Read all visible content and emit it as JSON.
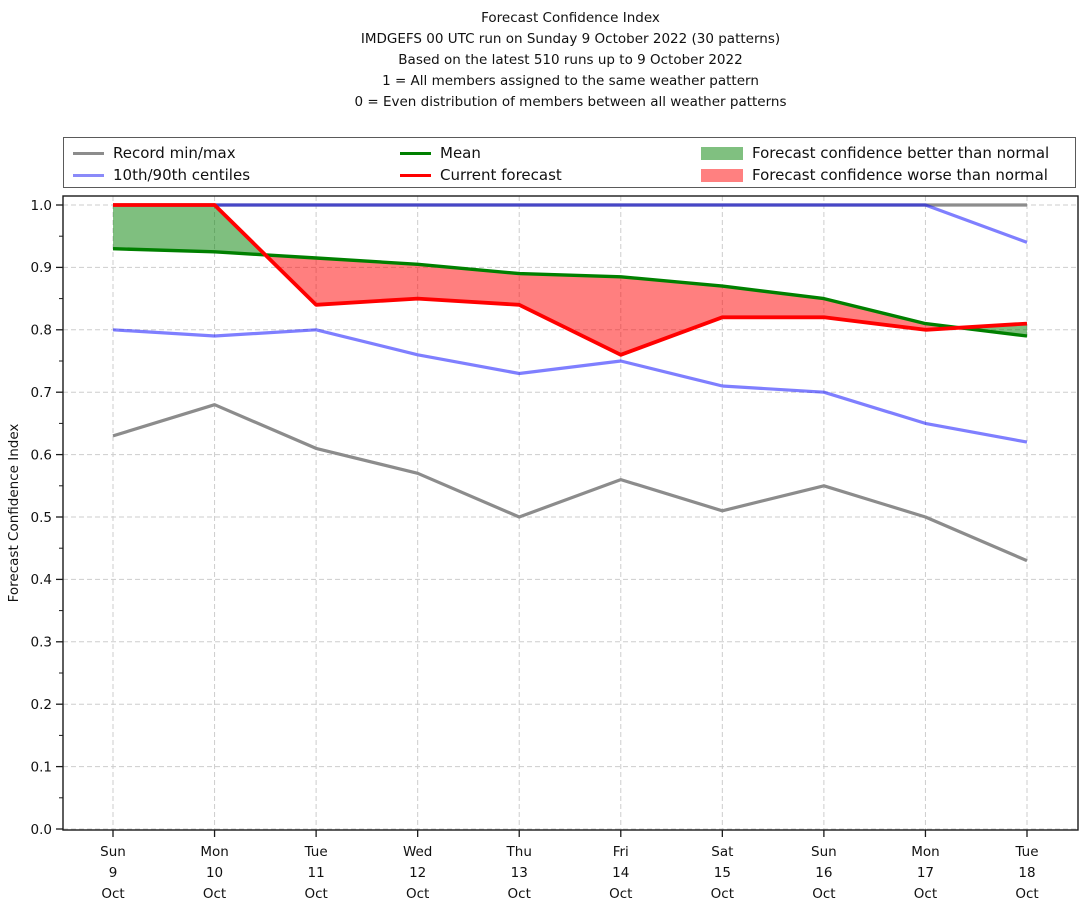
{
  "title": {
    "lines": [
      "Forecast Confidence Index",
      "IMDGEFS 00 UTC run on Sunday 9 October 2022 (30 patterns)",
      "Based on the latest 510 runs up to 9 October 2022",
      "1 = All members assigned to the same weather pattern",
      "0 = Even distribution of members between all weather patterns"
    ]
  },
  "legend": {
    "items": [
      {
        "type": "line",
        "color": "#8c8c8c",
        "label": "Record min/max"
      },
      {
        "type": "line",
        "color": "#8a8af9",
        "label": "10th/90th centiles"
      },
      {
        "type": "line",
        "color": "#008000",
        "label": "Mean"
      },
      {
        "type": "line",
        "color": "#ff0000",
        "label": "Current forecast"
      },
      {
        "type": "patch",
        "color": "#80c080",
        "label": "Forecast confidence better than normal"
      },
      {
        "type": "patch",
        "color": "#ff8080",
        "label": "Forecast confidence worse than normal"
      }
    ]
  },
  "chart_data": {
    "type": "line",
    "title": "Forecast Confidence Index",
    "xlabel": "",
    "ylabel": "Forecast Confidence Index",
    "ylim": [
      0.0,
      1.015
    ],
    "yticks": [
      0.0,
      0.1,
      0.2,
      0.3,
      0.4,
      0.5,
      0.6,
      0.7,
      0.8,
      0.9,
      1.0
    ],
    "ytick_labels": [
      "0.0",
      "0.1",
      "0.2",
      "0.3",
      "0.4",
      "0.5",
      "0.6",
      "0.7",
      "0.8",
      "0.9",
      "1.0"
    ],
    "grid": true,
    "legend_position": "top",
    "categories": [
      [
        "Sun",
        "9",
        "Oct"
      ],
      [
        "Mon",
        "10",
        "Oct"
      ],
      [
        "Tue",
        "11",
        "Oct"
      ],
      [
        "Wed",
        "12",
        "Oct"
      ],
      [
        "Thu",
        "13",
        "Oct"
      ],
      [
        "Fri",
        "14",
        "Oct"
      ],
      [
        "Sat",
        "15",
        "Oct"
      ],
      [
        "Sun",
        "16",
        "Oct"
      ],
      [
        "Mon",
        "17",
        "Oct"
      ],
      [
        "Tue",
        "18",
        "Oct"
      ]
    ],
    "series": [
      {
        "name": "Record max",
        "color": "#8c8c8c",
        "alpha": 1.0,
        "width": 3.2,
        "values": [
          1.0,
          1.0,
          1.0,
          1.0,
          1.0,
          1.0,
          1.0,
          1.0,
          1.0,
          1.0
        ]
      },
      {
        "name": "Record min",
        "color": "#8c8c8c",
        "alpha": 1.0,
        "width": 3.2,
        "values": [
          0.63,
          0.68,
          0.61,
          0.57,
          0.5,
          0.56,
          0.51,
          0.55,
          0.5,
          0.43
        ]
      },
      {
        "name": "90th centile",
        "color": "#0000ff",
        "alpha": 0.5,
        "width": 3.2,
        "values": [
          1.0,
          1.0,
          1.0,
          1.0,
          1.0,
          1.0,
          1.0,
          1.0,
          1.0,
          0.94
        ]
      },
      {
        "name": "10th centile",
        "color": "#0000ff",
        "alpha": 0.5,
        "width": 3.2,
        "values": [
          0.8,
          0.79,
          0.8,
          0.76,
          0.73,
          0.75,
          0.71,
          0.7,
          0.65,
          0.62
        ]
      },
      {
        "name": "Mean",
        "color": "#008000",
        "alpha": 1.0,
        "width": 3.4,
        "values": [
          0.93,
          0.925,
          0.915,
          0.905,
          0.89,
          0.885,
          0.87,
          0.85,
          0.81,
          0.79
        ]
      },
      {
        "name": "Current forecast",
        "color": "#ff0000",
        "alpha": 1.0,
        "width": 3.8,
        "values": [
          1.0,
          1.0,
          0.84,
          0.85,
          0.84,
          0.76,
          0.82,
          0.82,
          0.8,
          0.81
        ]
      }
    ],
    "fills": {
      "between": [
        "Current forecast",
        "Mean"
      ],
      "better_than_normal_color": "#008000",
      "worse_than_normal_color": "#ff0000",
      "fill_alpha": 0.5
    }
  }
}
